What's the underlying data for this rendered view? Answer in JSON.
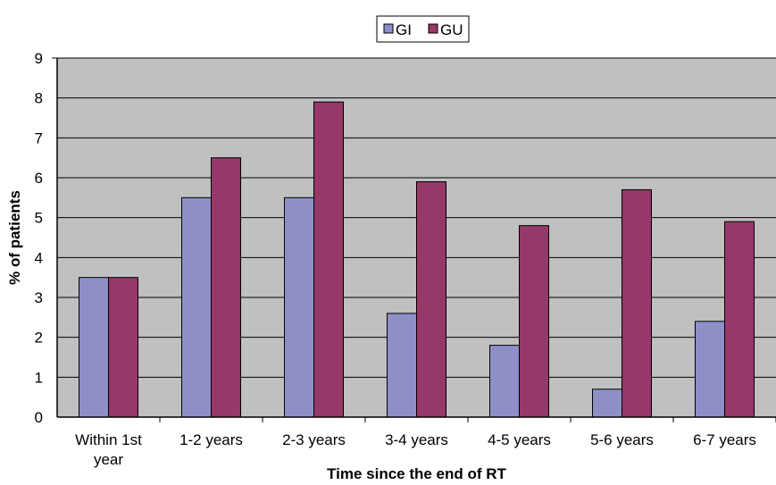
{
  "chart_data": {
    "type": "bar",
    "categories": [
      "Within 1st year",
      "1-2 years",
      "2-3 years",
      "3-4 years",
      "4-5 years",
      "5-6 years",
      "6-7 years"
    ],
    "category_lines": [
      [
        "Within 1st",
        "year"
      ],
      [
        "1-2 years"
      ],
      [
        "2-3 years"
      ],
      [
        "3-4 years"
      ],
      [
        "4-5 years"
      ],
      [
        "5-6 years"
      ],
      [
        "6-7 years"
      ]
    ],
    "series": [
      {
        "name": "GI",
        "values": [
          3.5,
          5.5,
          5.5,
          2.6,
          1.8,
          0.7,
          2.4
        ],
        "color": "#8f8fc8"
      },
      {
        "name": "GU",
        "values": [
          3.5,
          6.5,
          7.9,
          5.9,
          4.8,
          5.7,
          4.9
        ],
        "color": "#963869"
      }
    ],
    "xlabel": "Time since the end of RT",
    "ylabel": "% of patients",
    "ylim": [
      0,
      9
    ],
    "yticks": [
      0,
      1,
      2,
      3,
      4,
      5,
      6,
      7,
      8,
      9
    ],
    "grid": true,
    "legend_position": "top-center",
    "plot_background": "#c0c0c0"
  }
}
